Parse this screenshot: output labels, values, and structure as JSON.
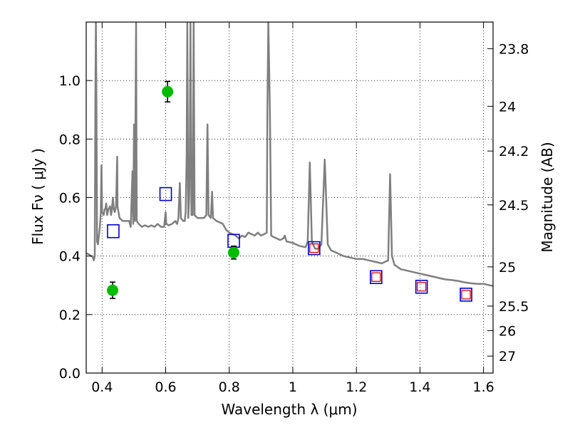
{
  "chart_data": {
    "type": "scatter",
    "xlabel": "Wavelength  λ (μm)",
    "ylabel": "Flux  Fν  ( μJy )",
    "y2label": "Magnitude (AB)",
    "xlim": [
      0.35,
      1.63
    ],
    "ylim": [
      0.0,
      1.2
    ],
    "x_ticks": [
      {
        "value": 0.4,
        "label": "0.4"
      },
      {
        "value": 0.6,
        "label": "0.6"
      },
      {
        "value": 0.8,
        "label": "0.8"
      },
      {
        "value": 1.0,
        "label": "1"
      },
      {
        "value": 1.2,
        "label": "1.2"
      },
      {
        "value": 1.4,
        "label": "1.4"
      },
      {
        "value": 1.6,
        "label": "1.6"
      }
    ],
    "y_ticks": [
      {
        "value": 0.0,
        "label": "0.0"
      },
      {
        "value": 0.2,
        "label": "0.2"
      },
      {
        "value": 0.4,
        "label": "0.4"
      },
      {
        "value": 0.6,
        "label": "0.6"
      },
      {
        "value": 0.8,
        "label": "0.8"
      },
      {
        "value": 1.0,
        "label": "1.0"
      }
    ],
    "y2_ticks": [
      {
        "label": "23.8",
        "flux": 1.109
      },
      {
        "label": "24",
        "flux": 0.912
      },
      {
        "label": "24.2",
        "flux": 0.759
      },
      {
        "label": "24.5",
        "flux": 0.575
      },
      {
        "label": "25",
        "flux": 0.363
      },
      {
        "label": "25.5",
        "flux": 0.229
      },
      {
        "label": "26",
        "flux": 0.145
      },
      {
        "label": "27",
        "flux": 0.058
      }
    ],
    "grid": true,
    "legend": "none",
    "colors": {
      "spectrum": "#7f7f7f",
      "photometry": "#00bb00",
      "model_box": "#0000cc",
      "model_box_inner": "#dd0000"
    },
    "series": [
      {
        "style": "line",
        "points": [
          [
            0.35,
            0.41
          ],
          [
            0.36,
            0.405
          ],
          [
            0.365,
            0.4
          ],
          [
            0.37,
            0.4
          ],
          [
            0.374,
            0.385
          ],
          [
            0.377,
            0.4
          ],
          [
            0.379,
            0.95
          ],
          [
            0.3805,
            1.2
          ],
          [
            0.382,
            0.95
          ],
          [
            0.384,
            0.45
          ],
          [
            0.387,
            0.44
          ],
          [
            0.39,
            0.47
          ],
          [
            0.393,
            0.5
          ],
          [
            0.396,
            0.55
          ],
          [
            0.398,
            0.71
          ],
          [
            0.4,
            0.55
          ],
          [
            0.405,
            0.54
          ],
          [
            0.408,
            0.56
          ],
          [
            0.41,
            0.56
          ],
          [
            0.413,
            0.58
          ],
          [
            0.416,
            0.54
          ],
          [
            0.42,
            0.56
          ],
          [
            0.425,
            0.57
          ],
          [
            0.428,
            0.54
          ],
          [
            0.43,
            0.55
          ],
          [
            0.434,
            0.6
          ],
          [
            0.437,
            0.56
          ],
          [
            0.44,
            0.55
          ],
          [
            0.444,
            0.57
          ],
          [
            0.4475,
            0.74
          ],
          [
            0.4485,
            0.57
          ],
          [
            0.455,
            0.53
          ],
          [
            0.465,
            0.52
          ],
          [
            0.475,
            0.52
          ],
          [
            0.485,
            0.52
          ],
          [
            0.49,
            0.5
          ],
          [
            0.4955,
            0.69
          ],
          [
            0.498,
            0.51
          ],
          [
            0.5005,
            0.85
          ],
          [
            0.503,
            0.52
          ],
          [
            0.507,
            1.2
          ],
          [
            0.509,
            0.52
          ],
          [
            0.515,
            0.51
          ],
          [
            0.525,
            0.5
          ],
          [
            0.535,
            0.505
          ],
          [
            0.545,
            0.5
          ],
          [
            0.555,
            0.505
          ],
          [
            0.565,
            0.5
          ],
          [
            0.575,
            0.51
          ],
          [
            0.585,
            0.5
          ],
          [
            0.595,
            0.5
          ],
          [
            0.6,
            0.55
          ],
          [
            0.602,
            0.51
          ],
          [
            0.61,
            0.505
          ],
          [
            0.62,
            0.51
          ],
          [
            0.63,
            0.52
          ],
          [
            0.636,
            0.51
          ],
          [
            0.64,
            0.53
          ],
          [
            0.6445,
            0.65
          ],
          [
            0.648,
            0.53
          ],
          [
            0.655,
            0.52
          ],
          [
            0.66,
            0.52
          ],
          [
            0.663,
            0.55
          ],
          [
            0.666,
            0.75
          ],
          [
            0.668,
            1.2
          ],
          [
            0.671,
            0.53
          ],
          [
            0.674,
            0.6
          ],
          [
            0.676,
            0.75
          ],
          [
            0.678,
            1.2
          ],
          [
            0.681,
            0.54
          ],
          [
            0.685,
            0.54
          ],
          [
            0.688,
            1.2
          ],
          [
            0.691,
            0.54
          ],
          [
            0.7,
            0.53
          ],
          [
            0.71,
            0.53
          ],
          [
            0.72,
            0.53
          ],
          [
            0.728,
            0.54
          ],
          [
            0.7315,
            0.85
          ],
          [
            0.735,
            0.54
          ],
          [
            0.742,
            0.53
          ],
          [
            0.746,
            0.62
          ],
          [
            0.749,
            0.53
          ],
          [
            0.76,
            0.52
          ],
          [
            0.77,
            0.515
          ],
          [
            0.78,
            0.51
          ],
          [
            0.79,
            0.49
          ],
          [
            0.8,
            0.48
          ],
          [
            0.81,
            0.475
          ],
          [
            0.82,
            0.47
          ],
          [
            0.83,
            0.46
          ],
          [
            0.84,
            0.47
          ],
          [
            0.85,
            0.465
          ],
          [
            0.86,
            0.48
          ],
          [
            0.87,
            0.475
          ],
          [
            0.88,
            0.47
          ],
          [
            0.89,
            0.48
          ],
          [
            0.9,
            0.47
          ],
          [
            0.91,
            0.475
          ],
          [
            0.918,
            0.48
          ],
          [
            0.92,
            0.9
          ],
          [
            0.923,
            1.2
          ],
          [
            0.928,
            0.9
          ],
          [
            0.932,
            0.47
          ],
          [
            0.94,
            0.465
          ],
          [
            0.95,
            0.46
          ],
          [
            0.96,
            0.455
          ],
          [
            0.97,
            0.46
          ],
          [
            0.975,
            0.47
          ],
          [
            0.98,
            0.45
          ],
          [
            1.0,
            0.445
          ],
          [
            1.02,
            0.435
          ],
          [
            1.04,
            0.43
          ],
          [
            1.047,
            0.45
          ],
          [
            1.0535,
            0.72
          ],
          [
            1.06,
            0.45
          ],
          [
            1.07,
            0.425
          ],
          [
            1.08,
            0.425
          ],
          [
            1.09,
            0.44
          ],
          [
            1.1005,
            0.73
          ],
          [
            1.11,
            0.44
          ],
          [
            1.12,
            0.42
          ],
          [
            1.14,
            0.41
          ],
          [
            1.16,
            0.4
          ],
          [
            1.18,
            0.395
          ],
          [
            1.2,
            0.39
          ],
          [
            1.22,
            0.39
          ],
          [
            1.24,
            0.385
          ],
          [
            1.26,
            0.38
          ],
          [
            1.28,
            0.375
          ],
          [
            1.3,
            0.385
          ],
          [
            1.306,
            0.68
          ],
          [
            1.312,
            0.4
          ],
          [
            1.32,
            0.37
          ],
          [
            1.34,
            0.355
          ],
          [
            1.36,
            0.35
          ],
          [
            1.38,
            0.345
          ],
          [
            1.4,
            0.34
          ],
          [
            1.42,
            0.335
          ],
          [
            1.44,
            0.33
          ],
          [
            1.46,
            0.325
          ],
          [
            1.48,
            0.32
          ],
          [
            1.5,
            0.318
          ],
          [
            1.52,
            0.315
          ],
          [
            1.54,
            0.31
          ],
          [
            1.56,
            0.307
          ],
          [
            1.58,
            0.305
          ],
          [
            1.6,
            0.305
          ],
          [
            1.62,
            0.3
          ],
          [
            1.63,
            0.298
          ]
        ]
      },
      {
        "style": "points-with-errorbars",
        "points": [
          {
            "x": 0.433,
            "y": 0.283,
            "err": 0.028
          },
          {
            "x": 0.606,
            "y": 0.962,
            "err": 0.035
          },
          {
            "x": 0.814,
            "y": 0.412,
            "err": 0.022
          }
        ]
      },
      {
        "style": "open-squares",
        "points": [
          {
            "x": 0.435,
            "y": 0.485,
            "inner": false
          },
          {
            "x": 0.6,
            "y": 0.612,
            "inner": false
          },
          {
            "x": 0.814,
            "y": 0.452,
            "inner": false
          },
          {
            "x": 1.067,
            "y": 0.427,
            "inner": true
          },
          {
            "x": 1.262,
            "y": 0.328,
            "inner": true
          },
          {
            "x": 1.405,
            "y": 0.295,
            "inner": true
          },
          {
            "x": 1.545,
            "y": 0.268,
            "inner": true
          }
        ]
      }
    ]
  }
}
